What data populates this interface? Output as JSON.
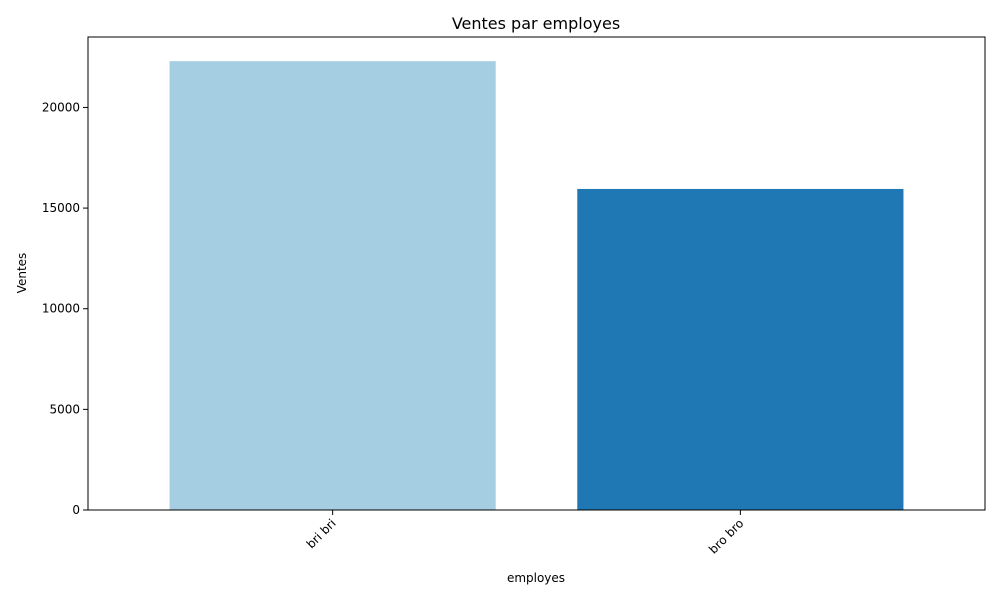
{
  "chart_data": {
    "type": "bar",
    "title": "Ventes par employes",
    "xlabel": "employes",
    "ylabel": "Ventes",
    "categories": [
      "bri bri",
      "bro bro"
    ],
    "values": [
      22300,
      15950
    ],
    "colors": [
      "#a6cee3",
      "#1f78b4"
    ],
    "ylim": [
      0,
      23500
    ],
    "yticks": [
      0,
      5000,
      10000,
      15000,
      20000
    ],
    "ytick_labels": [
      "0",
      "5000",
      "10000",
      "15000",
      "20000"
    ],
    "xtick_rotation": 45,
    "grid": false,
    "legend": "none"
  }
}
